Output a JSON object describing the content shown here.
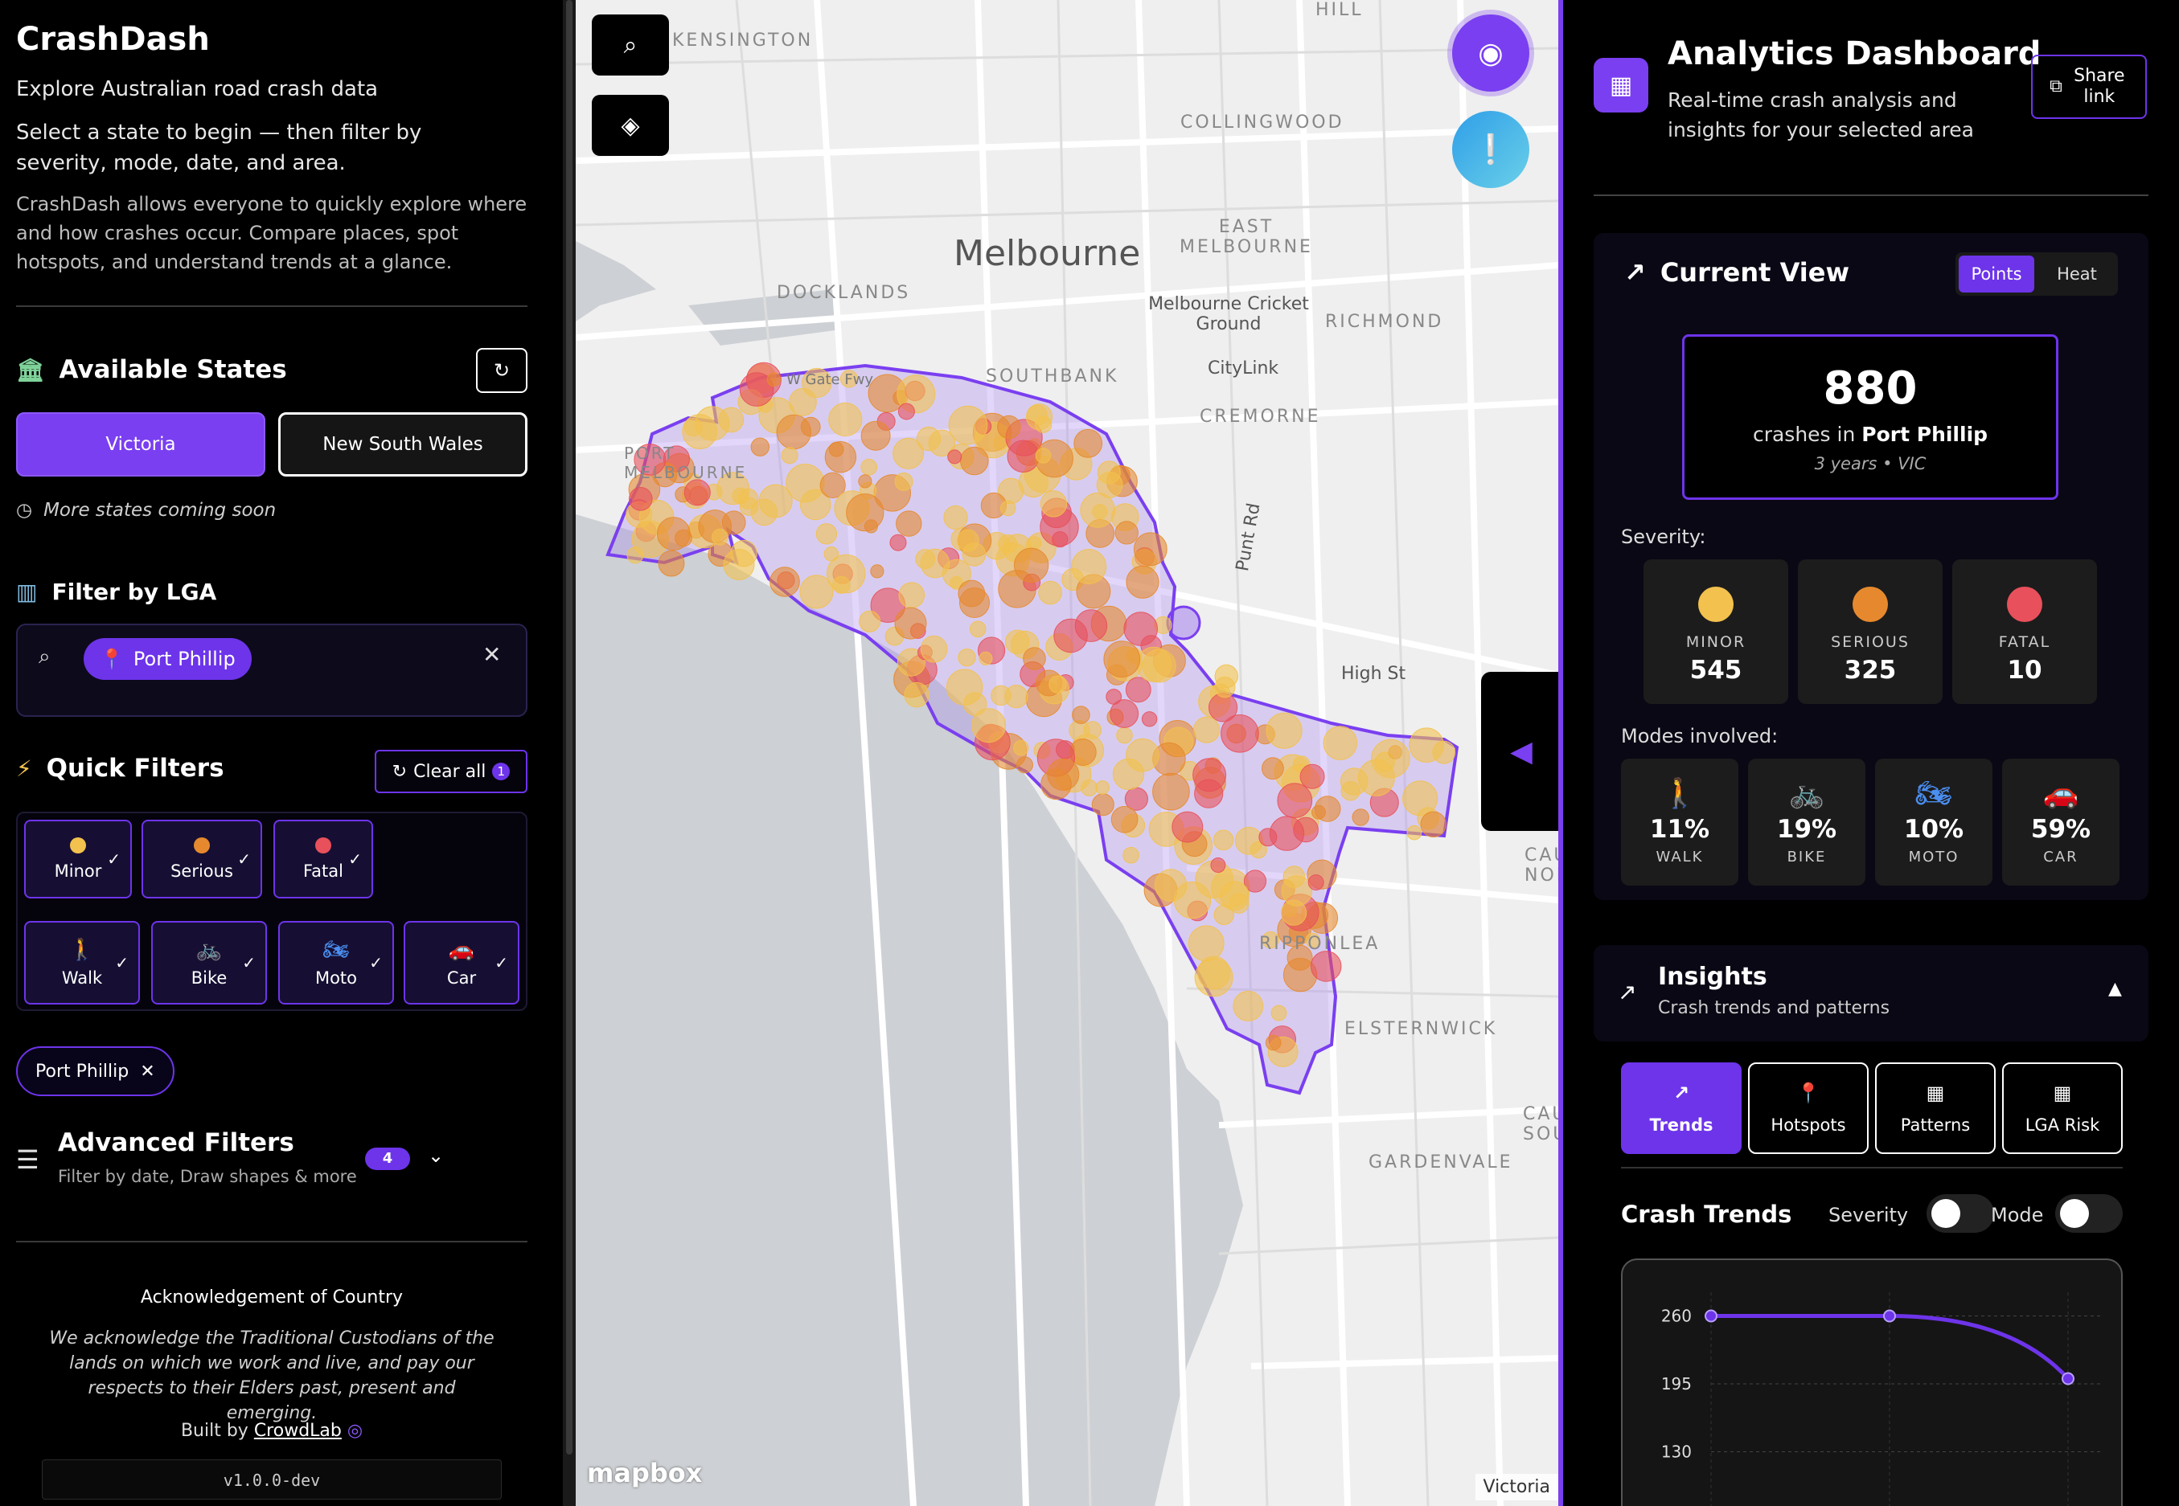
{
  "sidebar": {
    "title": "CrashDash",
    "subtitle": "Explore Australian road crash data",
    "select_text": "Select a state to begin — then filter by severity, mode, date, and area.",
    "description": "CrashDash allows everyone to quickly explore where and how crashes occur. Compare places, spot hotspots, and understand trends at a glance.",
    "states_title": "Available States",
    "states": [
      {
        "label": "Victoria",
        "selected": true
      },
      {
        "label": "New South Wales",
        "selected": false
      }
    ],
    "more_states": "More states coming soon",
    "lga_title": "Filter by LGA",
    "lga_selected": "Port Phillip",
    "quick_filters_title": "Quick Filters",
    "clear_all_label": "Clear all",
    "clear_all_count": "1",
    "severity_filters": [
      {
        "label": "Minor",
        "color": "#f2c14e",
        "checked": true
      },
      {
        "label": "Serious",
        "color": "#e6892e",
        "checked": true
      },
      {
        "label": "Fatal",
        "color": "#e8505b",
        "checked": true
      }
    ],
    "mode_filters": [
      {
        "label": "Walk",
        "icon": "walk-icon",
        "checked": true
      },
      {
        "label": "Bike",
        "icon": "bike-icon",
        "checked": true
      },
      {
        "label": "Moto",
        "icon": "moto-icon",
        "checked": true
      },
      {
        "label": "Car",
        "icon": "car-icon",
        "checked": true
      }
    ],
    "active_chip": "Port Phillip",
    "advanced_title": "Advanced Filters",
    "advanced_sub": "Filter by date, Draw shapes & more",
    "advanced_count": "4",
    "ack_title": "Acknowledgement of Country",
    "ack_text": "We acknowledge the Traditional Custodians of the lands on which we work and live, and pay our respects to their Elders past, present and emerging.",
    "built_by_prefix": "Built by",
    "built_by_link": "CrowdLab",
    "version": "v1.0.0-dev"
  },
  "map": {
    "city_label": "Melbourne",
    "labels": [
      "KENSINGTON",
      "COLLINGWOOD",
      "EAST MELBOURNE",
      "DOCKLANDS",
      "Melbourne Cricket Ground",
      "RICHMOND",
      "SOUTHBANK",
      "CityLink",
      "CREMORNE",
      "W Gate Fwy",
      "PORT MELBOURNE",
      "Punt Rd",
      "High St",
      "RIPPONLEA",
      "ELSTERNWICK",
      "GARDENVALE",
      "HILL",
      "CAULFIELD NORTH",
      "CAULFIELD SOUTH"
    ],
    "logo": "mapbox",
    "attribution": "Victoria",
    "accent": "#7a3ff0"
  },
  "dashboard": {
    "title": "Analytics Dashboard",
    "subtitle": "Real-time crash analysis and insights for your selected area",
    "share_label": "Share link",
    "current_view_title": "Current View",
    "view_modes": [
      "Points",
      "Heat"
    ],
    "active_view": "Points",
    "crash_count": "880",
    "crash_prefix": "crashes in",
    "area": "Port Phillip",
    "period": "3 years • VIC",
    "severity_label": "Severity:",
    "severity": [
      {
        "name": "MINOR",
        "value": "545",
        "color": "#f2c14e"
      },
      {
        "name": "SERIOUS",
        "value": "325",
        "color": "#e6892e"
      },
      {
        "name": "FATAL",
        "value": "10",
        "color": "#e8505b"
      }
    ],
    "modes_label": "Modes involved:",
    "modes": [
      {
        "name": "WALK",
        "pct": "11%",
        "icon": "walk-icon",
        "color": "#7fd39a"
      },
      {
        "name": "BIKE",
        "pct": "19%",
        "icon": "bike-icon",
        "color": "#6ac8e0"
      },
      {
        "name": "MOTO",
        "pct": "10%",
        "icon": "moto-icon",
        "color": "#4a8ef0"
      },
      {
        "name": "CAR",
        "pct": "59%",
        "icon": "car-icon",
        "color": "#8a8fa8"
      }
    ],
    "insights_title": "Insights",
    "insights_sub": "Crash trends and patterns",
    "insight_tabs": [
      "Trends",
      "Hotspots",
      "Patterns",
      "LGA Risk"
    ],
    "active_tab": "Trends",
    "trends_title": "Crash Trends",
    "toggle_severity": "Severity",
    "toggle_mode": "Mode"
  },
  "chart_data": {
    "type": "line",
    "title": "",
    "xlabel": "",
    "ylabel": "",
    "y_ticks": [
      "260",
      "195",
      "130"
    ],
    "ylim": [
      110,
      275
    ],
    "series": [
      {
        "values": [
          260,
          260,
          200
        ],
        "color": "#6d34ea"
      }
    ]
  }
}
